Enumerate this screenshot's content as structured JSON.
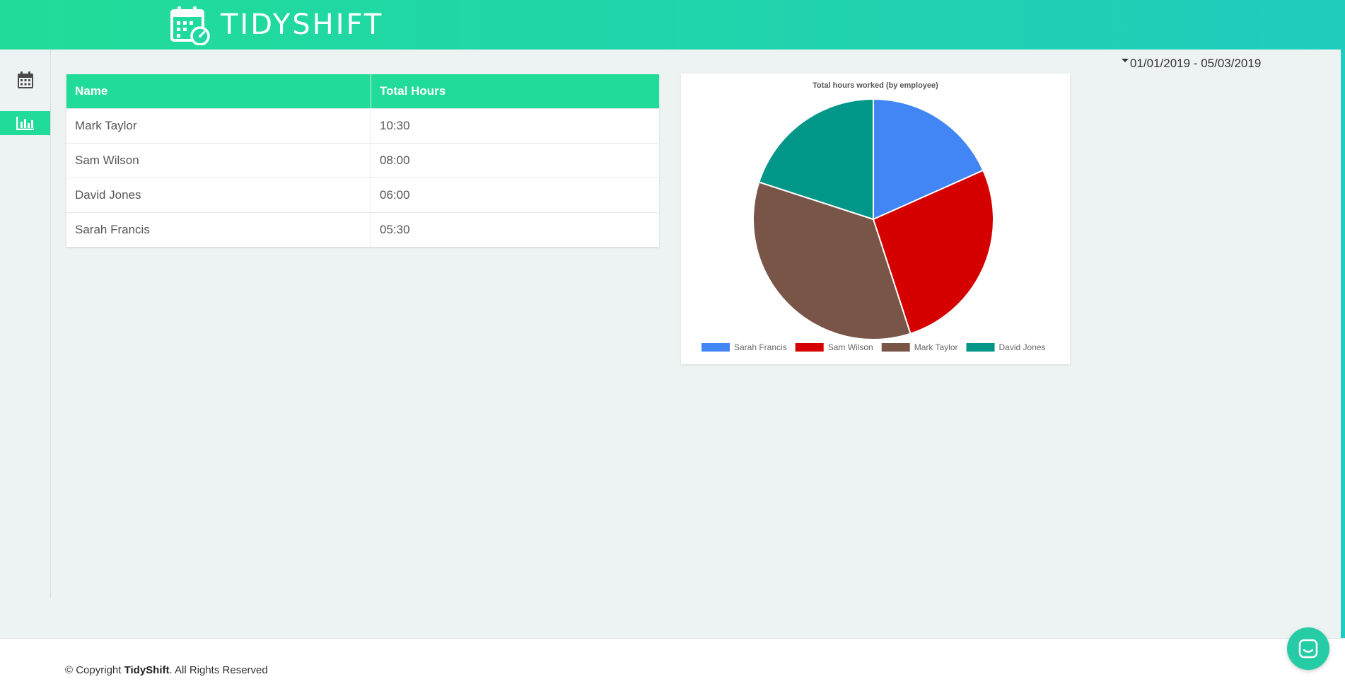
{
  "app": {
    "name": "TIDYSHIFT",
    "brand_color": "#21dc98",
    "header_gradient_end": "#1fcdbd"
  },
  "sidebar": {
    "items": [
      {
        "icon": "calendar-icon",
        "active": false
      },
      {
        "icon": "bar-chart-icon",
        "active": true
      }
    ]
  },
  "date_range": "01/01/2019 - 05/03/2019",
  "table": {
    "headers": [
      "Name",
      "Total Hours"
    ],
    "rows": [
      {
        "name": "Mark Taylor",
        "hours": "10:30"
      },
      {
        "name": "Sam Wilson",
        "hours": "08:00"
      },
      {
        "name": "David Jones",
        "hours": "06:00"
      },
      {
        "name": "Sarah Francis",
        "hours": "05:30"
      }
    ]
  },
  "chart_data": {
    "type": "pie",
    "title": "Total hours worked (by employee)",
    "legend_position": "bottom",
    "slices": [
      {
        "label": "Sarah Francis",
        "value": 5.5,
        "color": "#4285f4"
      },
      {
        "label": "Sam Wilson",
        "value": 8.0,
        "color": "#d50000"
      },
      {
        "label": "Mark Taylor",
        "value": 10.5,
        "color": "#795548"
      },
      {
        "label": "David Jones",
        "value": 6.0,
        "color": "#009688"
      }
    ]
  },
  "footer": {
    "prefix": "© Copyright ",
    "brand": "TidyShift",
    "suffix": ". All Rights Reserved"
  }
}
